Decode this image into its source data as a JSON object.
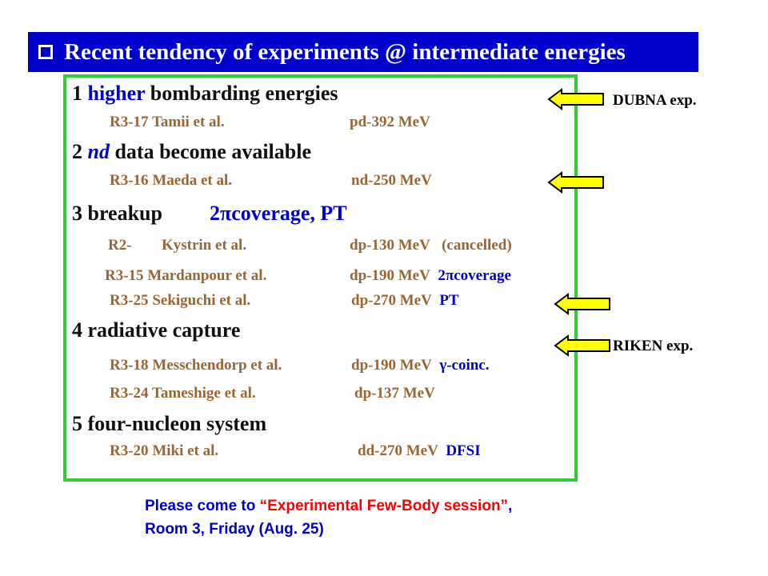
{
  "title": "Recent tendency of experiments @ intermediate energies",
  "items": [
    {
      "num": "1",
      "lead": "higher",
      "rest": "bombarding energies"
    },
    {
      "num": "2",
      "lead": "nd",
      "rest": "data become available"
    },
    {
      "num": "3",
      "rest": "breakup",
      "extra": "2πcoverage, PT"
    },
    {
      "num": "4",
      "rest": "radiative capture"
    },
    {
      "num": "5",
      "rest": "four-nucleon system"
    }
  ],
  "experiments": [
    {
      "id": "R3-17",
      "authors": "Tamii et al.",
      "reaction": "pd-392 MeV",
      "note": ""
    },
    {
      "id": "R3-16",
      "authors": "Maeda et al.",
      "reaction": "nd-250 MeV",
      "note": ""
    },
    {
      "id": "R2-",
      "authors": "Kystrin et al.",
      "reaction": "dp-130 MeV",
      "note": "(cancelled)"
    },
    {
      "id": "R3-15",
      "authors": "Mardanpour et al.",
      "reaction": "dp-190 MeV",
      "note": "2πcoverage"
    },
    {
      "id": "R3-25",
      "authors": "Sekiguchi et al.",
      "reaction": "dp-270 MeV",
      "note": "PT"
    },
    {
      "id": "R3-18",
      "authors": "Messchendorp et al.",
      "reaction": "dp-190 MeV",
      "note": "γ-coinc."
    },
    {
      "id": "R3-24",
      "authors": "Tameshige et al.",
      "reaction": "dp-137 MeV",
      "note": ""
    },
    {
      "id": "R3-20",
      "authors": "Miki et al.",
      "reaction": "dd-270 MeV",
      "note": "DFSI"
    }
  ],
  "labels": {
    "dubna": "DUBNA exp.",
    "riken": "RIKEN exp."
  },
  "footer": {
    "line1_pre": "Please come to ",
    "line1_quote": "“Experimental Few-Body session”",
    "line1_post": ",",
    "line2": "Room 3, Friday (Aug. 25)"
  }
}
